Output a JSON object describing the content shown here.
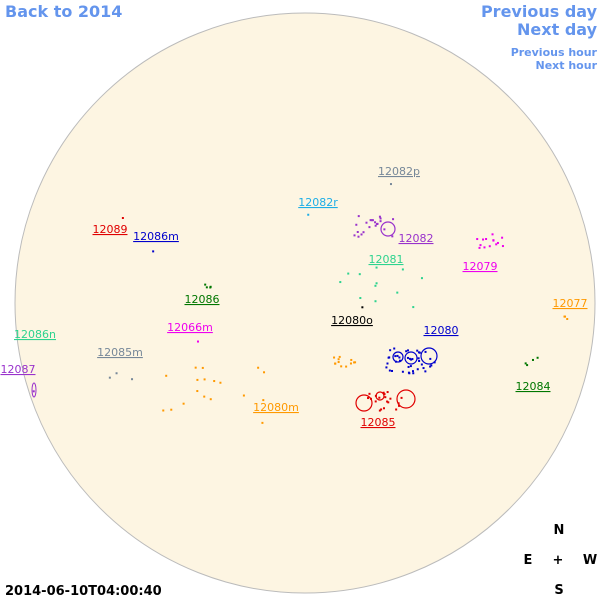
{
  "nav": {
    "back": "Back to 2014",
    "previous_day": "Previous day",
    "next_day": "Next day",
    "previous_hour": "Previous hour",
    "next_hour": "Next hour"
  },
  "regions": [
    {
      "label": "12082p",
      "color": "#778899"
    },
    {
      "label": "12082r",
      "color": "#1eaee6"
    },
    {
      "label": "12089",
      "color": "#e00000"
    },
    {
      "label": "12086m",
      "color": "#0000cc"
    },
    {
      "label": "12082",
      "color": "#9932cc"
    },
    {
      "label": "12081",
      "color": "#2ed38f"
    },
    {
      "label": "12079",
      "color": "#ee00ee"
    },
    {
      "label": "12086",
      "color": "#007700"
    },
    {
      "label": "12077",
      "color": "#ff9900"
    },
    {
      "label": "12080o",
      "color": "#000000"
    },
    {
      "label": "12066m",
      "color": "#ee00ee"
    },
    {
      "label": "12080",
      "color": "#0000cc"
    },
    {
      "label": "12086n",
      "color": "#2ed38f"
    },
    {
      "label": "12085m",
      "color": "#778899"
    },
    {
      "label": "12087",
      "color": "#9932cc"
    },
    {
      "label": "12084",
      "color": "#007700"
    },
    {
      "label": "12080m",
      "color": "#ff9900"
    },
    {
      "label": "12085",
      "color": "#e00000"
    }
  ],
  "compass": {
    "north": "N",
    "east": "E",
    "center": "+",
    "west": "W",
    "south": "S"
  },
  "timestamp": "2014-06-10T04:00:40"
}
